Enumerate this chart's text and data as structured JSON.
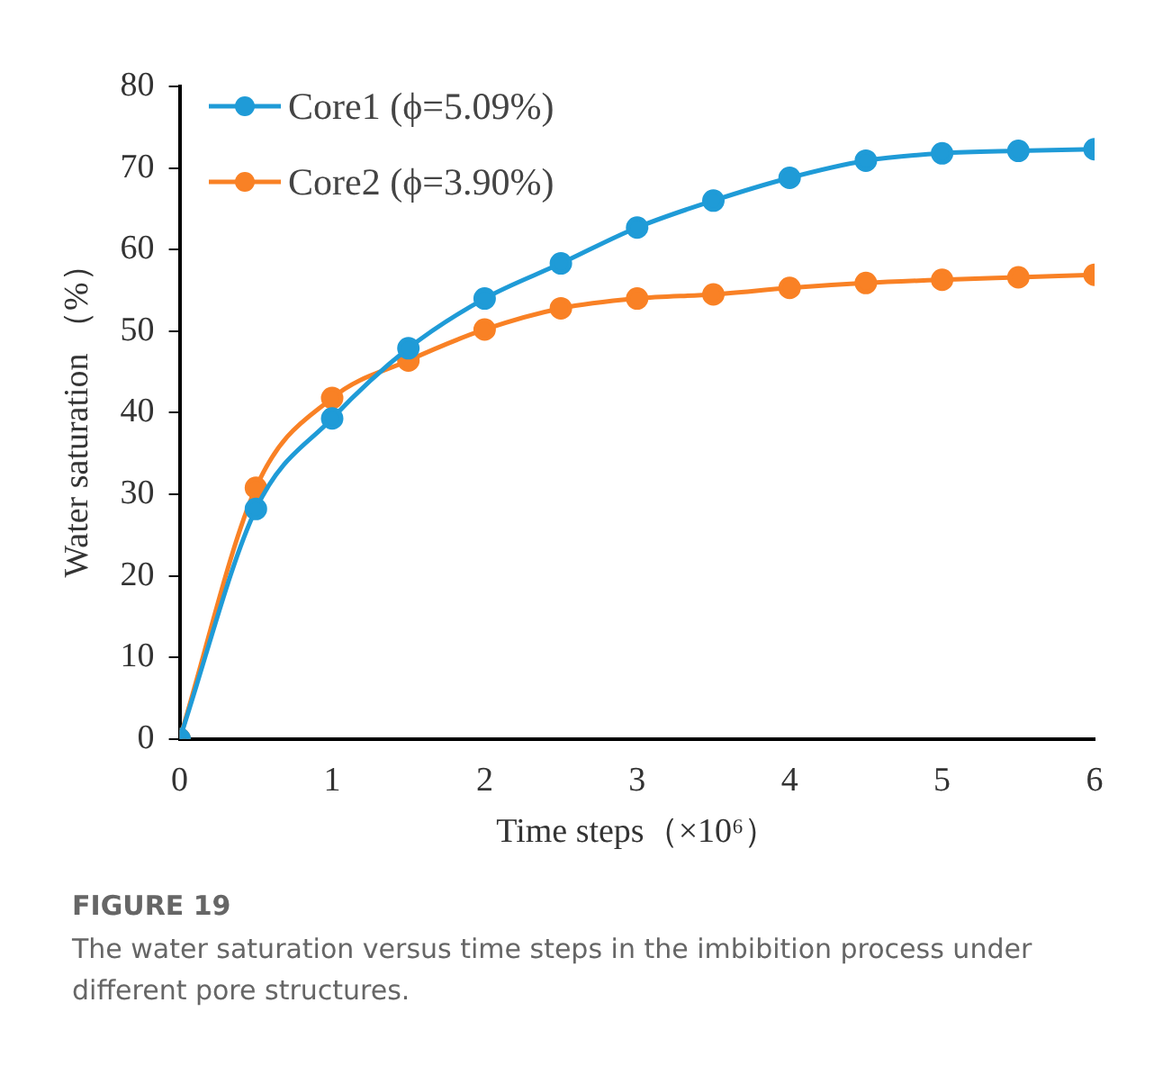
{
  "chart_data": {
    "type": "line",
    "xlabel": "Time steps（×10⁶）",
    "ylabel": "Water saturation （%）",
    "x": [
      0,
      0.5,
      1,
      1.5,
      2,
      2.5,
      3,
      3.5,
      4,
      4.5,
      5,
      5.5,
      6
    ],
    "series": [
      {
        "name": "Core1 (ϕ=5.09%)",
        "color": "#1f9bd7",
        "values": [
          0,
          28.2,
          39.3,
          47.9,
          54,
          58.3,
          62.7,
          66,
          68.8,
          70.9,
          71.8,
          72.1,
          72.3
        ]
      },
      {
        "name": "Core2 (ϕ=3.90%)",
        "color": "#f98125",
        "values": [
          0,
          30.8,
          41.8,
          46.4,
          50.2,
          52.8,
          54,
          54.5,
          55.3,
          55.9,
          56.3,
          56.6,
          56.9
        ]
      }
    ],
    "xlim": [
      0,
      6
    ],
    "xticks": [
      0,
      1,
      2,
      3,
      4,
      5,
      6
    ],
    "ylim": [
      0,
      80
    ],
    "yticks": [
      0,
      10,
      20,
      30,
      40,
      50,
      60,
      70,
      80
    ],
    "grid": false,
    "legend": "top left",
    "marker": "circle",
    "line_style": "solid",
    "annotations": [
      "FIGURE 19",
      "The water saturation versus time steps in the imbibition process under different pore structures."
    ]
  }
}
